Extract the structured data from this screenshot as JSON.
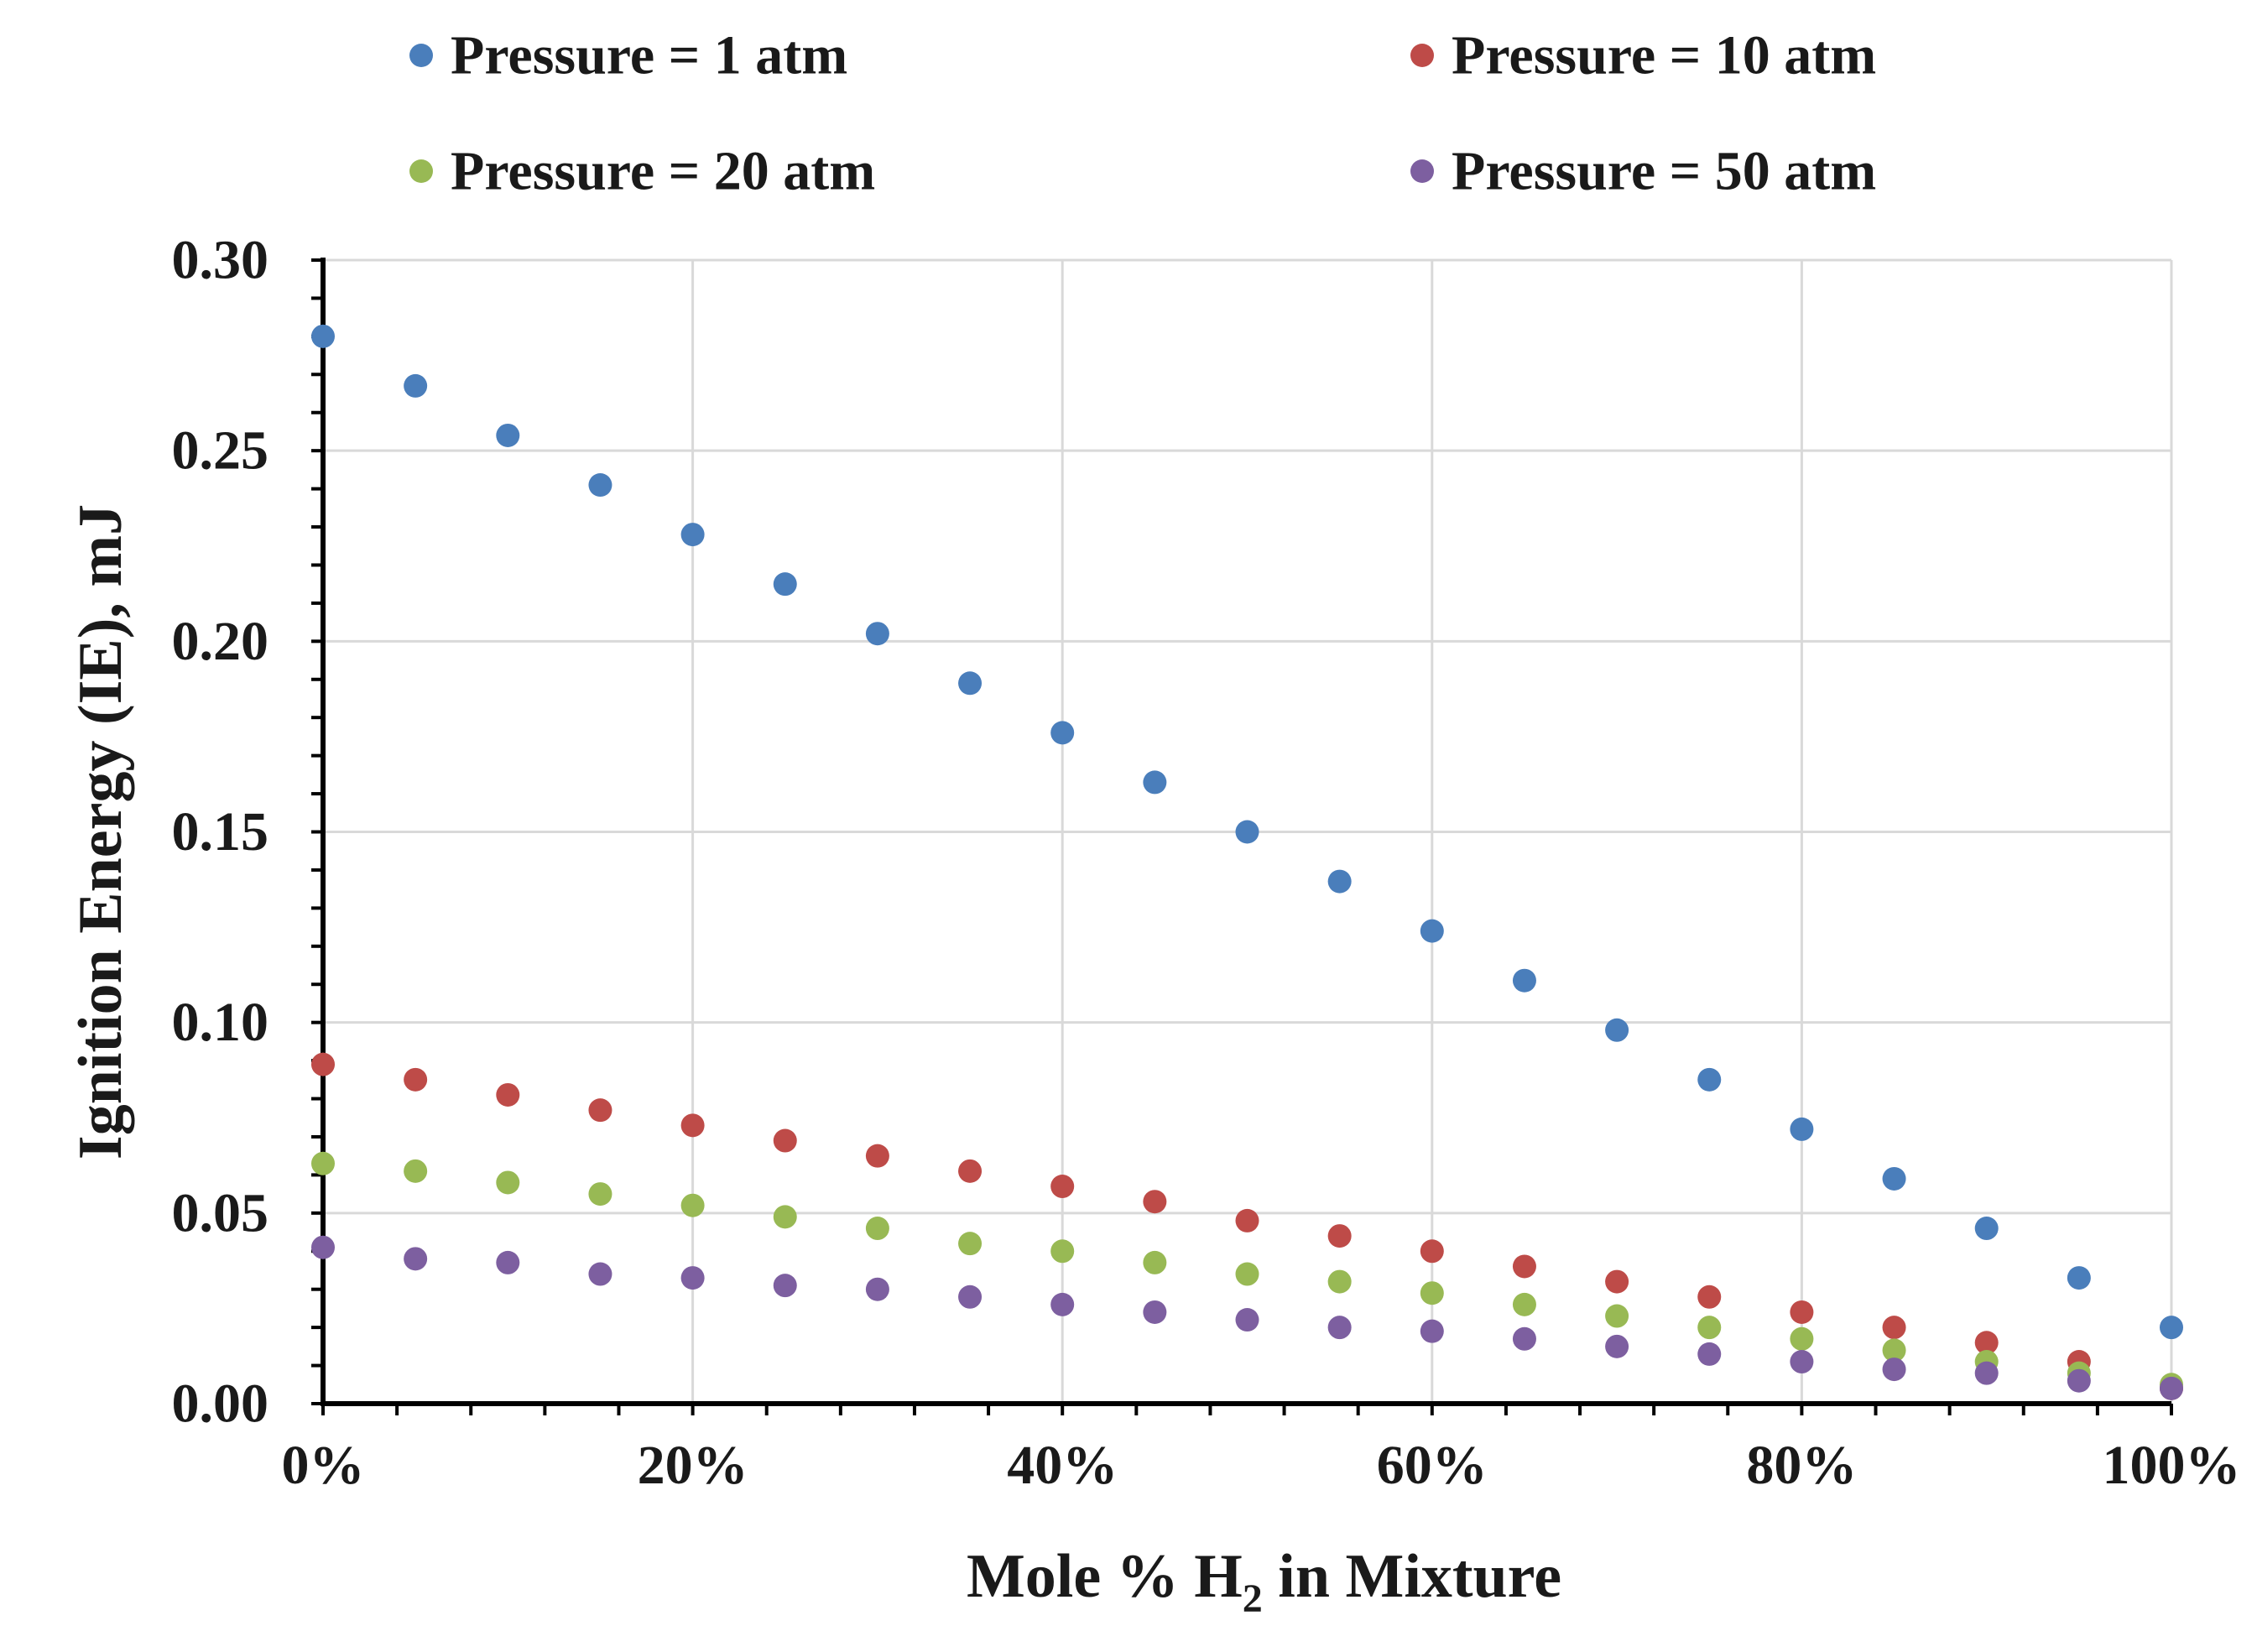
{
  "chart_data": {
    "type": "scatter",
    "xlabel_parts": [
      "Mole % H",
      "2",
      " in Mixture"
    ],
    "ylabel": "Ignition Energy (IE), mJ",
    "xlim": [
      0,
      100
    ],
    "ylim": [
      0,
      0.3
    ],
    "x_ticks": [
      0,
      20,
      40,
      60,
      80,
      100
    ],
    "x_tick_labels": [
      "0%",
      "20%",
      "40%",
      "60%",
      "80%",
      "100%"
    ],
    "y_ticks": [
      0,
      0.05,
      0.1,
      0.15,
      0.2,
      0.25,
      0.3
    ],
    "y_tick_labels": [
      "0.00",
      "0.05",
      "0.10",
      "0.15",
      "0.20",
      "0.25",
      "0.30"
    ],
    "x_minor_step": 4,
    "y_minor_step": 0.01,
    "grid": true,
    "legend_position": "top",
    "x": [
      0,
      5,
      10,
      15,
      20,
      25,
      30,
      35,
      40,
      45,
      50,
      55,
      60,
      65,
      70,
      75,
      80,
      85,
      90,
      95,
      100
    ],
    "series": [
      {
        "name": "Pressure = 1 atm",
        "color": "#4a7ebb",
        "values": [
          0.28,
          0.267,
          0.254,
          0.241,
          0.228,
          0.215,
          0.202,
          0.189,
          0.176,
          0.163,
          0.15,
          0.137,
          0.124,
          0.111,
          0.098,
          0.085,
          0.072,
          0.059,
          0.046,
          0.033,
          0.02
        ]
      },
      {
        "name": "Pressure = 10 atm",
        "color": "#be4b48",
        "values": [
          0.089,
          0.085,
          0.081,
          0.077,
          0.073,
          0.069,
          0.065,
          0.061,
          0.057,
          0.053,
          0.048,
          0.044,
          0.04,
          0.036,
          0.032,
          0.028,
          0.024,
          0.02,
          0.016,
          0.011,
          0.004
        ]
      },
      {
        "name": "Pressure = 20 atm",
        "color": "#98b954",
        "values": [
          0.063,
          0.061,
          0.058,
          0.055,
          0.052,
          0.049,
          0.046,
          0.042,
          0.04,
          0.037,
          0.034,
          0.032,
          0.029,
          0.026,
          0.023,
          0.02,
          0.017,
          0.014,
          0.011,
          0.008,
          0.005
        ]
      },
      {
        "name": "Pressure = 50 atm",
        "color": "#7d5fa0",
        "values": [
          0.041,
          0.038,
          0.037,
          0.034,
          0.033,
          0.031,
          0.03,
          0.028,
          0.026,
          0.024,
          0.022,
          0.02,
          0.019,
          0.017,
          0.015,
          0.013,
          0.011,
          0.009,
          0.008,
          0.006,
          0.004
        ]
      }
    ]
  }
}
